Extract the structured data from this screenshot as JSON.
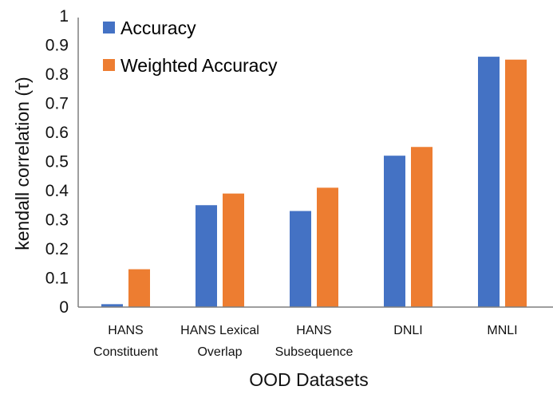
{
  "chart_data": {
    "type": "bar",
    "title": "",
    "xlabel": "OOD Datasets",
    "ylabel": "kendall correlation (τ)",
    "ylim": [
      0,
      1
    ],
    "yticks": [
      "0",
      "0.1",
      "0.2",
      "0.3",
      "0.4",
      "0.5",
      "0.6",
      "0.7",
      "0.8",
      "0.9",
      "1"
    ],
    "grid": false,
    "legend_position": "upper-left-inside",
    "categories": [
      [
        "HANS",
        "Constituent"
      ],
      [
        "HANS Lexical",
        "Overlap"
      ],
      [
        "HANS",
        "Subsequence"
      ],
      [
        "DNLI"
      ],
      [
        "MNLI"
      ]
    ],
    "category_labels": [
      "HANS Constituent",
      "HANS Lexical Overlap",
      "HANS Subsequence",
      "DNLI",
      "MNLI"
    ],
    "series": [
      {
        "name": "Accuracy",
        "color": "#4472C4",
        "values": [
          0.01,
          0.35,
          0.33,
          0.52,
          0.86
        ]
      },
      {
        "name": "Weighted Accuracy",
        "color": "#ED7D31",
        "values": [
          0.13,
          0.39,
          0.41,
          0.55,
          0.85
        ]
      }
    ]
  },
  "legend": {
    "items": [
      {
        "label": "Accuracy",
        "color": "#4472C4"
      },
      {
        "label": "Weighted Accuracy",
        "color": "#ED7D31"
      }
    ]
  },
  "axes": {
    "x_title": "OOD Datasets",
    "y_title": "kendall correlation (τ)",
    "axis_color": "#7f7f7f"
  }
}
